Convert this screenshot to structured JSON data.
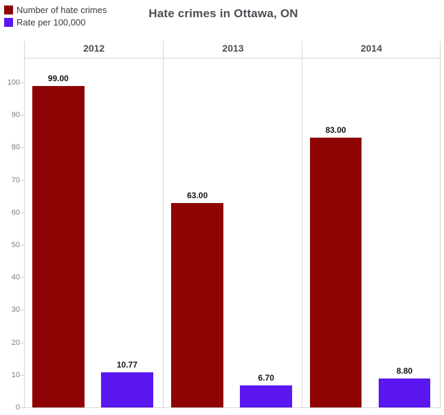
{
  "title": "Hate crimes in Ottawa, ON",
  "legend": {
    "items": [
      {
        "label": "Number of hate crimes",
        "color": "#8e0303"
      },
      {
        "label": "Rate per 100,000",
        "color": "#5a17f2"
      }
    ]
  },
  "chart_data": {
    "type": "bar",
    "title": "Hate crimes in Ottawa, ON",
    "categories": [
      "2012",
      "2013",
      "2014"
    ],
    "series": [
      {
        "name": "Number of hate crimes",
        "color": "#8e0303",
        "values": [
          99,
          63,
          83
        ],
        "labels": [
          "99.00",
          "63.00",
          "83.00"
        ]
      },
      {
        "name": "Rate per 100,000",
        "color": "#5a17f2",
        "values": [
          10.77,
          6.7,
          8.8
        ],
        "labels": [
          "10.77",
          "6.70",
          "8.80"
        ]
      }
    ],
    "xlabel": "",
    "ylabel": "",
    "ylim": [
      0,
      100
    ],
    "yticks": [
      0,
      10,
      20,
      30,
      40,
      50,
      60,
      70,
      80,
      90,
      100
    ],
    "grid": false,
    "legend_position": "top-left",
    "panel_layout": "one-panel-per-category"
  }
}
